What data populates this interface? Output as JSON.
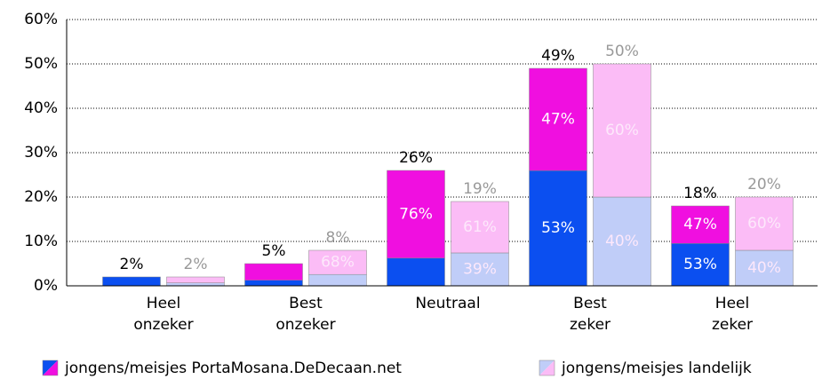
{
  "chart_data": {
    "type": "grouped-stacked-bar",
    "categories": [
      "Heel onzeker",
      "Best onzeker",
      "Neutraal",
      "Best zeker",
      "Heel zeker"
    ],
    "ylim": [
      0,
      60
    ],
    "yticks": [
      {
        "value": 0,
        "label": "0%"
      },
      {
        "value": 10,
        "label": "10%"
      },
      {
        "value": 20,
        "label": "20%"
      },
      {
        "value": 30,
        "label": "30%"
      },
      {
        "value": 40,
        "label": "40%"
      },
      {
        "value": 50,
        "label": "50%"
      },
      {
        "value": 60,
        "label": "60%"
      }
    ],
    "grid": true,
    "groups": [
      {
        "name": "jongens/meisjes PortaMosana.DeDecaan.net",
        "colors": [
          "#0b4ff0",
          "#f00fe0"
        ],
        "total_label_color": "#000000",
        "share_label_color": "#ffffff",
        "totals": [
          2,
          5,
          26,
          49,
          18
        ],
        "total_labels": [
          "2%",
          "5%",
          "26%",
          "49%",
          "18%"
        ],
        "shares": [
          [
            100,
            0
          ],
          [
            25,
            75
          ],
          [
            24,
            76
          ],
          [
            53,
            47
          ],
          [
            53,
            47
          ]
        ],
        "share_labels": [
          [
            null,
            null
          ],
          [
            null,
            null
          ],
          [
            null,
            "76%"
          ],
          [
            "53%",
            "47%"
          ],
          [
            "53%",
            "47%"
          ]
        ]
      },
      {
        "name": "jongens/meisjes landelijk",
        "colors": [
          "#c0cdf8",
          "#fbbcf6"
        ],
        "total_label_color": "#999999",
        "share_label_color": "#fde8fb",
        "totals": [
          2,
          8,
          19,
          50,
          20
        ],
        "total_labels": [
          "2%",
          "8%",
          "19%",
          "50%",
          "20%"
        ],
        "shares": [
          [
            33,
            67
          ],
          [
            32,
            68
          ],
          [
            39,
            61
          ],
          [
            40,
            60
          ],
          [
            40,
            60
          ]
        ],
        "share_labels": [
          [
            null,
            null
          ],
          [
            null,
            "68%"
          ],
          [
            "39%",
            "61%"
          ],
          [
            "40%",
            "60%"
          ],
          [
            "40%",
            "60%"
          ]
        ]
      }
    ]
  }
}
